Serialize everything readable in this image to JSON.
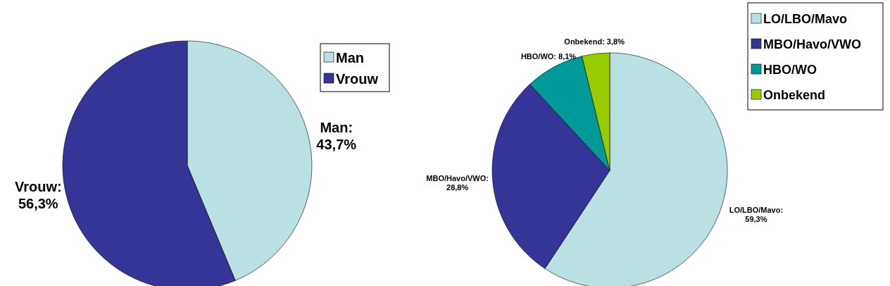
{
  "chart_data": [
    {
      "type": "pie",
      "categories": [
        "Man",
        "Vrouw"
      ],
      "values": [
        43.7,
        56.3
      ],
      "colors": [
        "#b9e0e3",
        "#353597"
      ],
      "value_labels": [
        "Man:\n43,7%",
        "Vrouw:\n56,3%"
      ],
      "legend": "top right"
    },
    {
      "type": "pie",
      "categories": [
        "LO/LBO/Mavo",
        "MBO/Havo/VWO",
        "HBO/WO",
        "Onbekend"
      ],
      "values": [
        59.3,
        28.8,
        8.1,
        3.8
      ],
      "colors": [
        "#b9e0e3",
        "#353597",
        "#009999",
        "#99cc00"
      ],
      "value_labels": [
        "LO/LBO/Mavo:\n59,3%",
        "MBO/Havo/VWO:\n28,8%",
        "HBO/WO: 8,1%",
        "Onbekend: 3,8%"
      ],
      "legend": "top right"
    }
  ]
}
